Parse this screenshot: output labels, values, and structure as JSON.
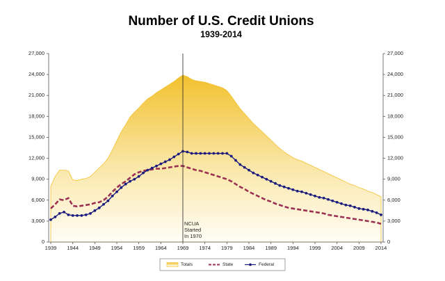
{
  "chart_data": {
    "type": "line",
    "title": "Number of U.S. Credit Unions",
    "subtitle": "1939-2014",
    "x": [
      1939,
      1940,
      1941,
      1942,
      1943,
      1944,
      1945,
      1946,
      1947,
      1948,
      1949,
      1950,
      1951,
      1952,
      1953,
      1954,
      1955,
      1956,
      1957,
      1958,
      1959,
      1960,
      1961,
      1962,
      1963,
      1964,
      1965,
      1966,
      1967,
      1968,
      1969,
      1970,
      1971,
      1972,
      1973,
      1974,
      1975,
      1976,
      1977,
      1978,
      1979,
      1980,
      1981,
      1982,
      1983,
      1984,
      1985,
      1986,
      1987,
      1988,
      1989,
      1990,
      1991,
      1992,
      1993,
      1994,
      1995,
      1996,
      1997,
      1998,
      1999,
      2000,
      2001,
      2002,
      2003,
      2004,
      2005,
      2006,
      2007,
      2008,
      2009,
      2010,
      2011,
      2012,
      2013,
      2014
    ],
    "series": [
      {
        "name": "Totals",
        "kind": "area",
        "color": "#f2c12e",
        "values": [
          8000,
          9400,
          10300,
          10300,
          10200,
          8900,
          8800,
          9000,
          9100,
          9400,
          10000,
          10600,
          11200,
          12000,
          13200,
          14500,
          15800,
          16800,
          17900,
          18600,
          19200,
          19900,
          20500,
          20900,
          21400,
          21800,
          22200,
          22600,
          23000,
          23500,
          23900,
          23700,
          23300,
          23100,
          23000,
          22900,
          22700,
          22500,
          22300,
          22100,
          21700,
          20900,
          20000,
          19100,
          18400,
          17700,
          17000,
          16400,
          15800,
          15200,
          14600,
          14000,
          13400,
          12900,
          12500,
          12100,
          11800,
          11600,
          11300,
          11000,
          10700,
          10400,
          10100,
          9800,
          9500,
          9200,
          8900,
          8600,
          8300,
          8100,
          7800,
          7600,
          7300,
          7100,
          6800,
          6500
        ]
      },
      {
        "name": "State",
        "kind": "dashed",
        "color": "#9b3152",
        "values": [
          4800,
          5400,
          6100,
          6000,
          6300,
          5200,
          5100,
          5200,
          5300,
          5400,
          5600,
          5700,
          6000,
          6500,
          7200,
          7800,
          8300,
          8700,
          9200,
          9700,
          10000,
          10200,
          10300,
          10400,
          10500,
          10500,
          10600,
          10700,
          10800,
          10900,
          10900,
          10700,
          10500,
          10300,
          10200,
          10000,
          9800,
          9600,
          9400,
          9200,
          9000,
          8700,
          8300,
          7900,
          7600,
          7200,
          6900,
          6600,
          6300,
          6000,
          5800,
          5500,
          5300,
          5100,
          4900,
          4800,
          4700,
          4600,
          4500,
          4400,
          4300,
          4200,
          4100,
          3900,
          3800,
          3700,
          3600,
          3500,
          3400,
          3300,
          3200,
          3100,
          3000,
          2900,
          2800,
          2600
        ]
      },
      {
        "name": "Federal",
        "kind": "dots",
        "color": "#1c1c7e",
        "values": [
          3200,
          3600,
          4100,
          4300,
          3900,
          3800,
          3800,
          3800,
          3900,
          4100,
          4500,
          4900,
          5400,
          5900,
          6600,
          7200,
          7800,
          8300,
          8700,
          9000,
          9400,
          9900,
          10300,
          10600,
          10900,
          11200,
          11500,
          11800,
          12200,
          12600,
          13000,
          12900,
          12700,
          12700,
          12700,
          12700,
          12700,
          12700,
          12700,
          12700,
          12700,
          12300,
          11700,
          11100,
          10700,
          10300,
          9900,
          9600,
          9300,
          9000,
          8700,
          8400,
          8100,
          7900,
          7700,
          7500,
          7300,
          7200,
          7000,
          6800,
          6600,
          6400,
          6300,
          6100,
          5900,
          5700,
          5500,
          5300,
          5200,
          5000,
          4800,
          4700,
          4600,
          4400,
          4200,
          3900
        ]
      }
    ],
    "xlim": [
      1939,
      2014
    ],
    "xticks": [
      1939,
      1944,
      1949,
      1954,
      1959,
      1964,
      1969,
      1974,
      1979,
      1984,
      1989,
      1994,
      1999,
      2004,
      2009,
      2014
    ],
    "ylim": [
      0,
      27000
    ],
    "yticks": [
      0,
      {
        "value": 3000,
        "label": "3,000"
      },
      {
        "value": 6000,
        "label": "6,000"
      },
      {
        "value": 9000,
        "label": "9,000"
      },
      {
        "value": 12000,
        "label": "12,000"
      },
      {
        "value": 15000,
        "label": "15,000"
      },
      {
        "value": 18000,
        "label": "18,000"
      },
      {
        "value": 21000,
        "label": "21,000"
      },
      {
        "value": 24000,
        "label": "24,000"
      },
      {
        "value": 27000,
        "label": "27,000"
      }
    ],
    "mirror_y_axis": true,
    "legend": "bottom",
    "annotation": {
      "x": 1969,
      "lines": [
        "NCUA",
        "Started",
        "In 1970"
      ]
    }
  }
}
